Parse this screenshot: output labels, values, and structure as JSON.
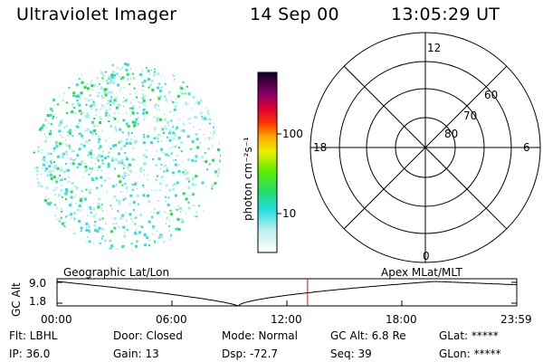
{
  "header": {
    "instrument": "Ultraviolet Imager",
    "date": "14 Sep 00",
    "time": "13:05:29 UT"
  },
  "colorbar": {
    "label": "photon cm⁻²s⁻¹",
    "tick_100": "100",
    "tick_10": "10"
  },
  "polar": {
    "label_top": "12",
    "label_bottom": "0",
    "label_left": "18",
    "label_right": "6",
    "ring_60": "60",
    "ring_70": "70",
    "ring_80": "80"
  },
  "timeline": {
    "left_title": "Geographic Lat/Lon",
    "right_title": "Apex  MLat/MLT",
    "ylabel": "GC Alt",
    "ytick_top": "9.0",
    "ytick_bottom": "1.8",
    "xticks": [
      "00:00",
      "06:00",
      "12:00",
      "18:00",
      "23:59"
    ],
    "current_time_fraction": 0.545
  },
  "info": {
    "flt": "Flt: LBHL",
    "ip": "IP: 36.0",
    "door": "Door: Closed",
    "gain": "Gain: 13",
    "mode": "Mode: Normal",
    "dsp": "Dsp:   -72.7",
    "gcalt": "GC Alt: 6.8 Re",
    "seq": "Seq: 39",
    "glat": "GLat: *****",
    "glon": "GLon: *****"
  },
  "colors": {
    "image_green": "#22dd44",
    "image_cyan": "#33dddd",
    "image_light": "#aaeeee",
    "timeline_marker": "#ff0000"
  }
}
